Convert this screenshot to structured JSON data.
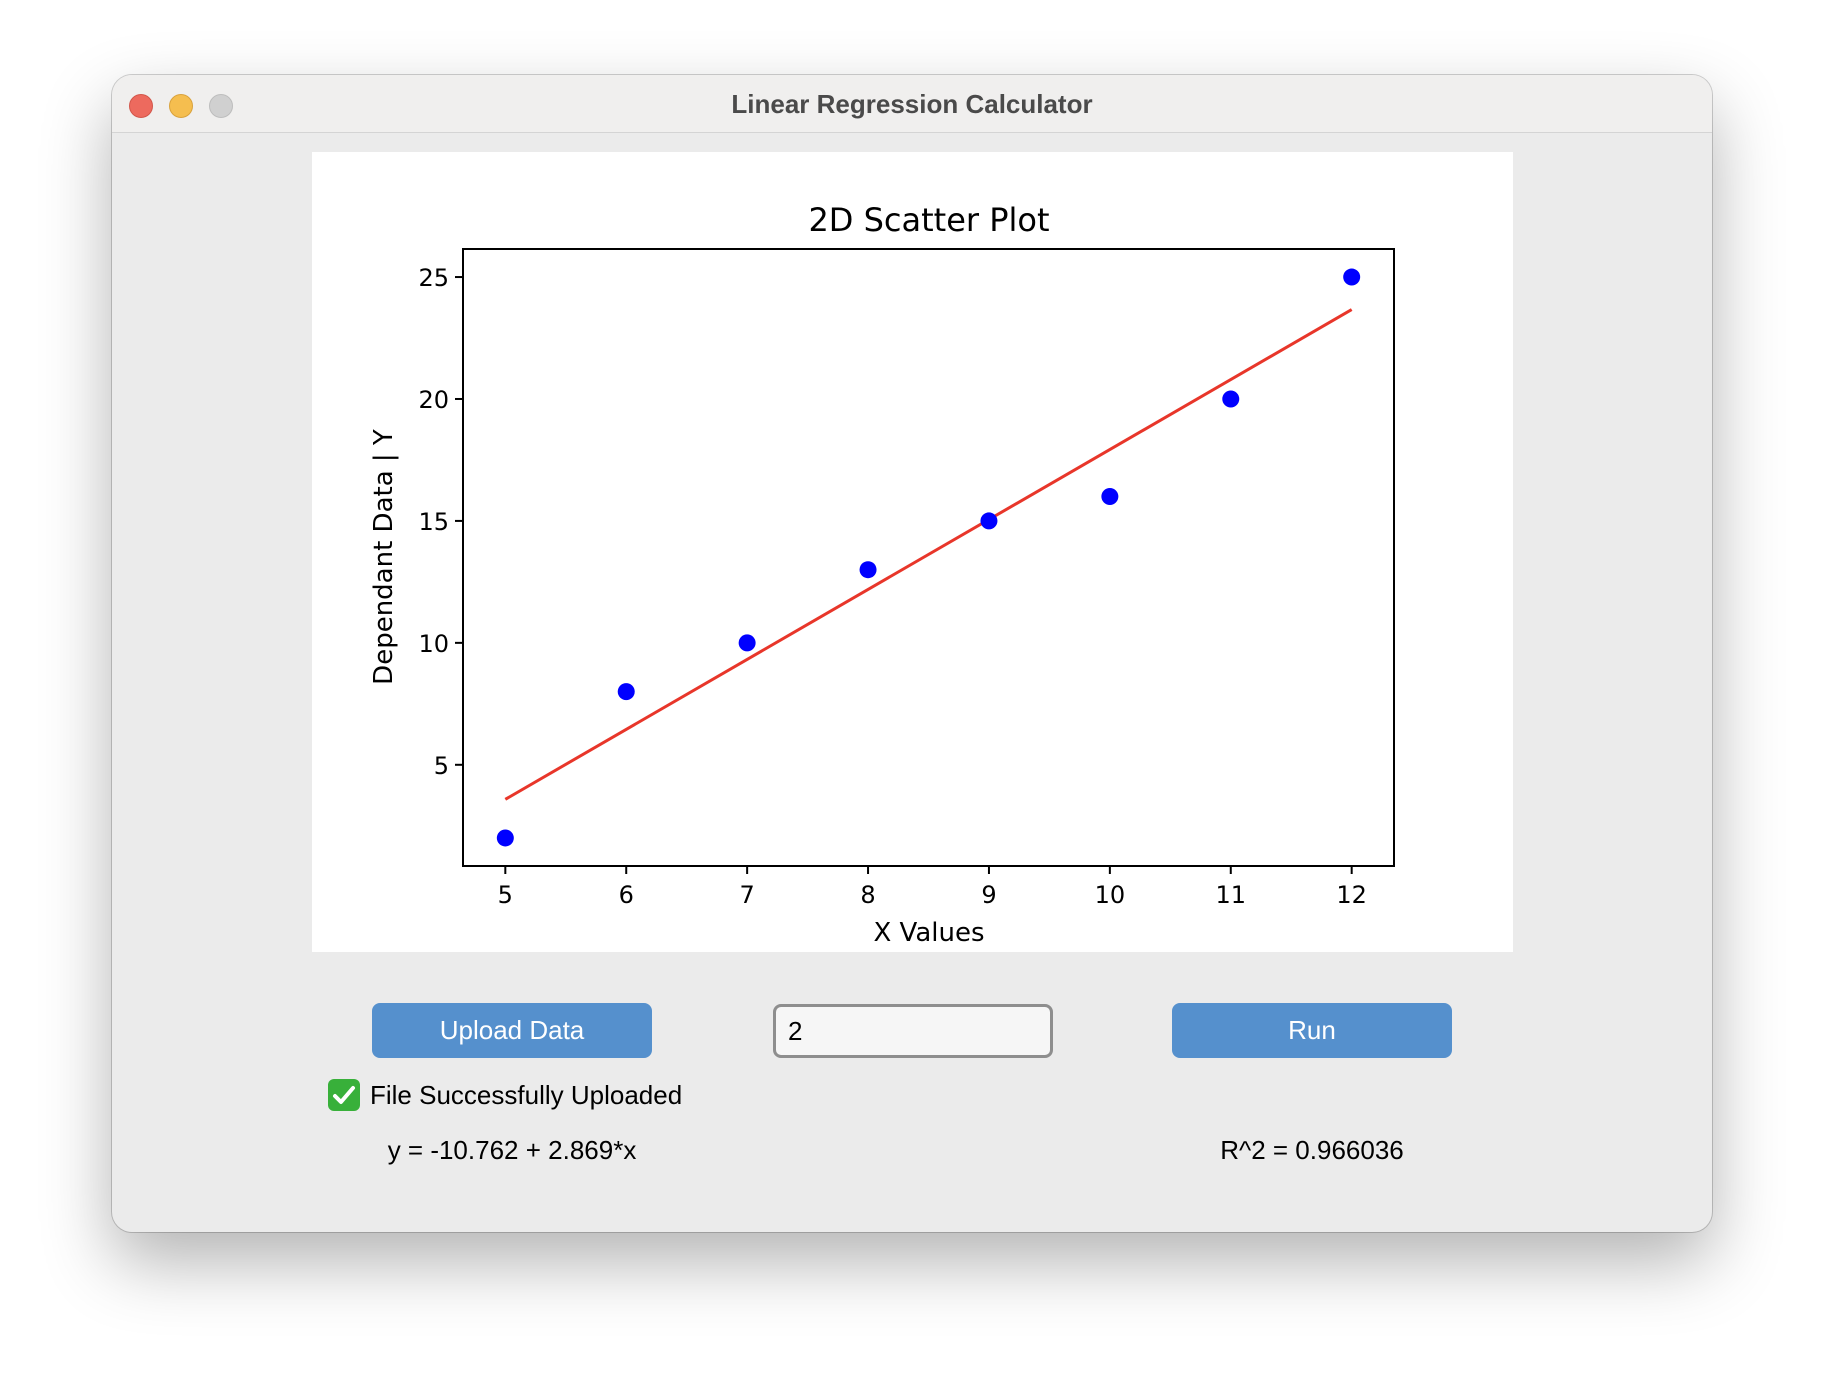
{
  "window": {
    "title": "Linear Regression Calculator"
  },
  "controls": {
    "upload_label": "Upload Data",
    "input_value": "2",
    "run_label": "Run"
  },
  "status": {
    "icon": "check-mark-icon",
    "text": "File Successfully Uploaded"
  },
  "results": {
    "equation": "y = -10.762 + 2.869*x",
    "r_squared": "R^2 = 0.966036"
  },
  "colors": {
    "button": "#5590cd",
    "points": "#0000ff",
    "fit_line": "#e8362a",
    "status_check": "#38b03a"
  },
  "chart_data": {
    "type": "scatter",
    "title": "2D Scatter Plot",
    "xlabel": "X Values",
    "ylabel": "Dependant Data | Y",
    "x": [
      5,
      6,
      7,
      8,
      9,
      10,
      11,
      12
    ],
    "y": [
      2,
      8,
      10,
      13,
      15,
      16,
      20,
      25
    ],
    "xlim": [
      4.65,
      12.35
    ],
    "ylim": [
      0.85,
      26.15
    ],
    "xticks": [
      "5",
      "6",
      "7",
      "8",
      "9",
      "10",
      "11",
      "12"
    ],
    "yticks": [
      "5",
      "10",
      "15",
      "20",
      "25"
    ],
    "fit_line": {
      "intercept": -10.762,
      "slope": 2.869,
      "x_range": [
        5,
        12
      ]
    },
    "grid": false,
    "legend": "none"
  }
}
